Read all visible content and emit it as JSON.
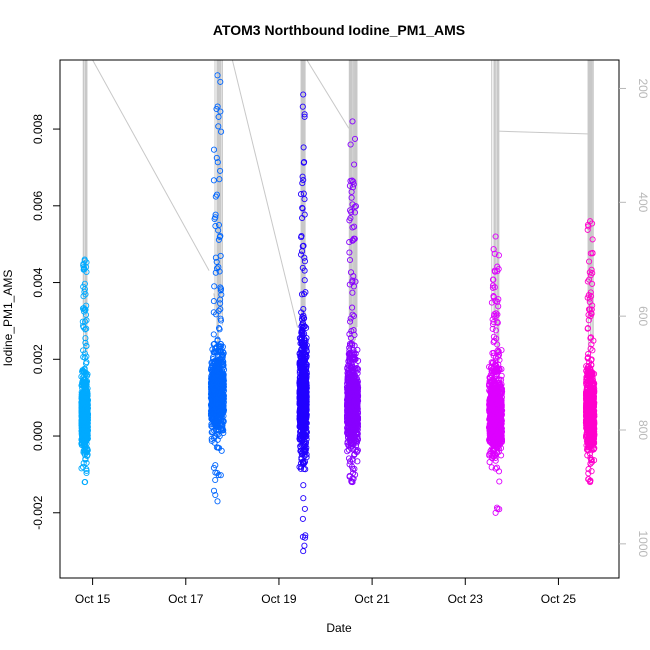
{
  "chart_data": {
    "type": "scatter",
    "title": "ATOM3 Northbound Iodine_PM1_AMS",
    "xlabel": "Date",
    "ylabel": "Iodine_PM1_AMS",
    "x_ticks": [
      "Oct 15",
      "Oct 17",
      "Oct 19",
      "Oct 21",
      "Oct 23",
      "Oct 25"
    ],
    "y_ticks": [
      -0.002,
      0.0,
      0.002,
      0.004,
      0.006,
      0.008
    ],
    "y_tick_labels": [
      "-0.002",
      "0.000",
      "0.002",
      "0.004",
      "0.006",
      "0.008"
    ],
    "y_right_ticks": [
      200,
      400,
      600,
      800,
      1000
    ],
    "y_right_tick_labels": [
      "200",
      "400",
      "600",
      "800",
      "1000"
    ],
    "ylim": [
      -0.0037,
      0.0098
    ],
    "y_right_lim": [
      1060,
      150
    ],
    "xlim_days": [
      14.3,
      26.3
    ],
    "secondary_line_color": "#c8c8c8",
    "groups": [
      {
        "day": 14.83,
        "width": 0.14,
        "color": "#00aaff",
        "center": 0.0005,
        "spread": 0.0007,
        "max": 0.0046,
        "min": -0.0012
      },
      {
        "day": 17.68,
        "width": 0.28,
        "color": "#0066ff",
        "center": 0.0011,
        "spread": 0.0009,
        "max": 0.0094,
        "min": -0.0017
      },
      {
        "day": 19.52,
        "width": 0.16,
        "color": "#2200ff",
        "center": 0.0009,
        "spread": 0.0012,
        "max": 0.0089,
        "min": -0.003
      },
      {
        "day": 20.58,
        "width": 0.24,
        "color": "#8800ff",
        "center": 0.0008,
        "spread": 0.001,
        "max": 0.0082,
        "min": -0.0012
      },
      {
        "day": 23.65,
        "width": 0.28,
        "color": "#dd00ff",
        "center": 0.0006,
        "spread": 0.0009,
        "max": 0.0052,
        "min": -0.002
      },
      {
        "day": 25.68,
        "width": 0.18,
        "color": "#ff00cc",
        "center": 0.0006,
        "spread": 0.0008,
        "max": 0.0056,
        "min": -0.0012
      }
    ]
  }
}
